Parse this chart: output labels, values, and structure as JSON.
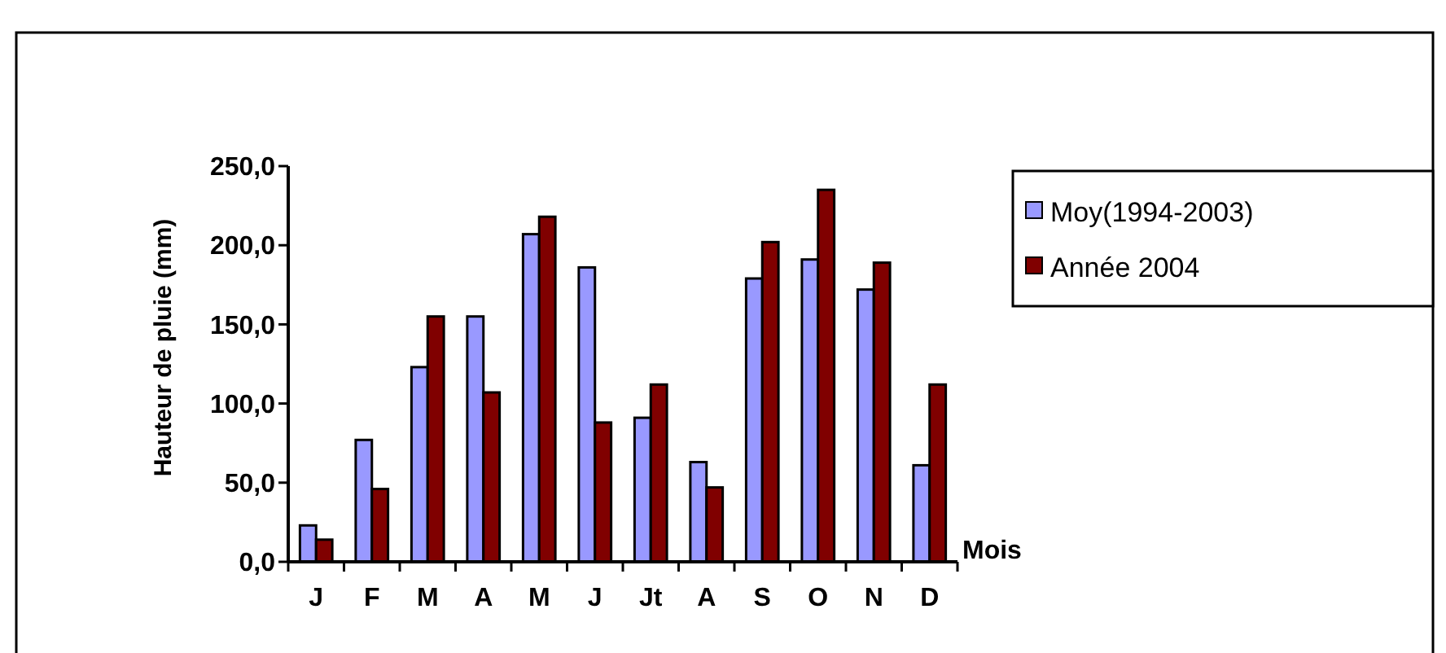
{
  "chart_data": {
    "type": "bar",
    "xlabel": "Mois",
    "ylabel": "Hauteur de pluie (mm)",
    "categories": [
      "J",
      "F",
      "M",
      "A",
      "M",
      "J",
      "Jt",
      "A",
      "S",
      "O",
      "N",
      "D"
    ],
    "series": [
      {
        "name": "Moy(1994-2003)",
        "color": "#9999ff",
        "values": [
          23,
          77,
          123,
          155,
          207,
          186,
          91,
          63,
          179,
          191,
          172,
          61
        ]
      },
      {
        "name": "Année 2004",
        "color": "#800000",
        "values": [
          14,
          46,
          155,
          107,
          218,
          88,
          112,
          47,
          202,
          235,
          189,
          112
        ]
      }
    ],
    "ylim": [
      0,
      250
    ],
    "yticks": [
      {
        "value": 0,
        "label": "0,0"
      },
      {
        "value": 50,
        "label": "50,0"
      },
      {
        "value": 100,
        "label": "100,0"
      },
      {
        "value": 150,
        "label": "150,0"
      },
      {
        "value": 200,
        "label": "200,0"
      },
      {
        "value": 250,
        "label": "250,0"
      }
    ],
    "grid": false,
    "legend": "right"
  }
}
